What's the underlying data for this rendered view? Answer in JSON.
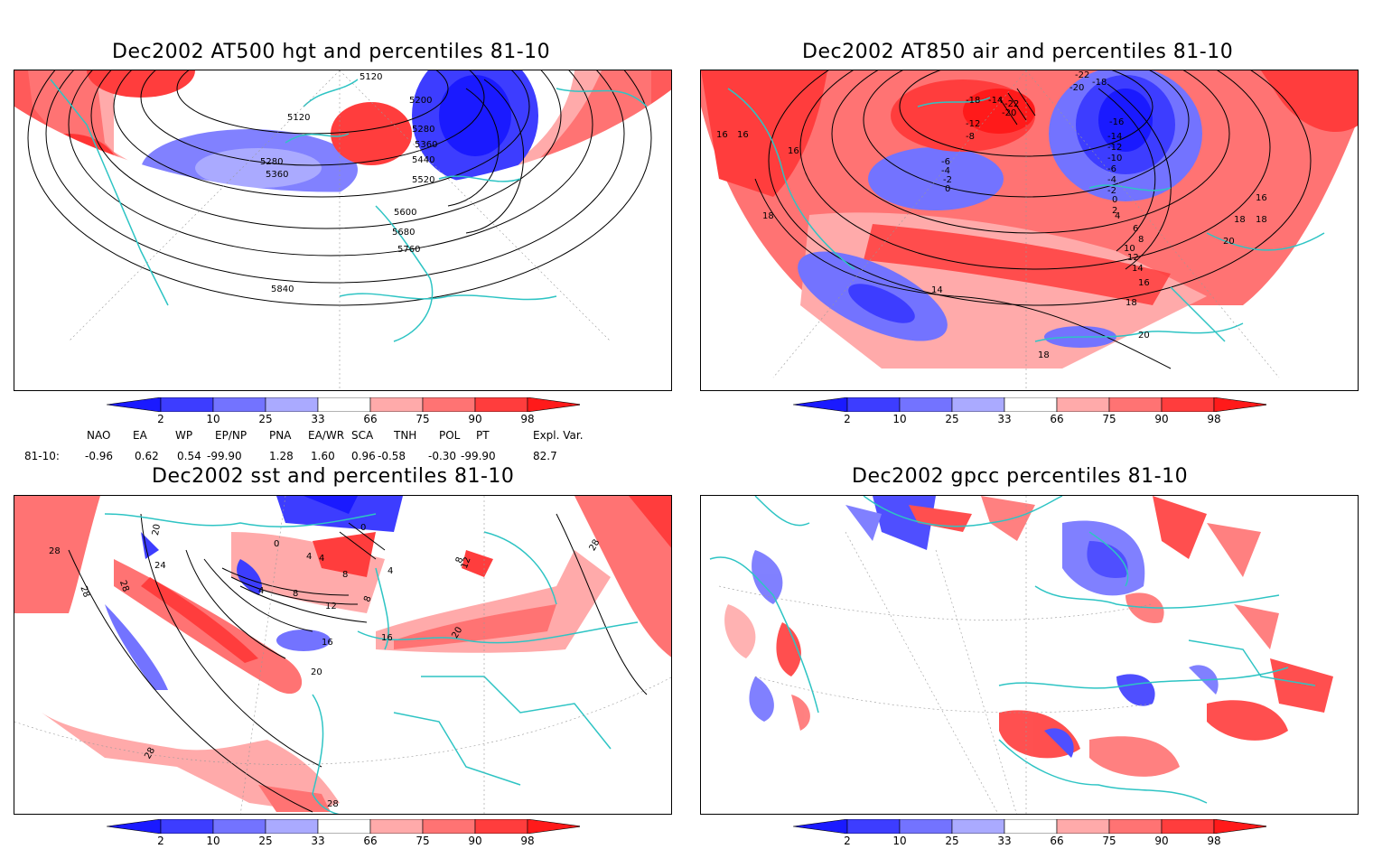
{
  "panels": [
    {
      "title": "Dec2002 AT500 hgt and percentiles 81-10",
      "contour_labels": [
        "5120",
        "5120",
        "5200",
        "5280",
        "5360",
        "5440",
        "5520",
        "5280",
        "5360",
        "5600",
        "5680",
        "5760",
        "5840"
      ]
    },
    {
      "title": "Dec2002 AT850 air and percentiles 81-10",
      "contour_labels": [
        "16",
        "16",
        "18",
        "-18",
        "-14",
        "-20",
        "-22",
        "-12",
        "-8",
        "-20",
        "-22",
        "-18",
        "-16",
        "-14",
        "-12",
        "-10",
        "-6",
        "-4",
        "-2",
        "0",
        "2",
        "-6",
        "-4",
        "-2",
        "0",
        "4",
        "6",
        "8",
        "10",
        "12",
        "14",
        "16",
        "18",
        "20",
        "14",
        "16",
        "18",
        "20",
        "18",
        "16",
        "18"
      ]
    },
    {
      "title": "Dec2002 sst and percentiles 81-10",
      "contour_labels": [
        "28",
        "20",
        "24",
        "28",
        "28",
        "0",
        "0",
        "4",
        "4",
        "8",
        "4",
        "8",
        "12",
        "16",
        "20",
        "16",
        "20",
        "28",
        "28",
        "8",
        "12",
        "4",
        "8",
        "28"
      ]
    },
    {
      "title": "Dec2002 gpcc percentiles 81-10",
      "contour_labels": []
    }
  ],
  "colorbar": {
    "ticks": [
      "2",
      "10",
      "25",
      "33",
      "66",
      "75",
      "90",
      "98"
    ],
    "colors": [
      "#1a1aff",
      "#3d3dff",
      "#7373ff",
      "#aaaaff",
      "#ffffff",
      "#ffaaaa",
      "#ff7373",
      "#ff3d3d",
      "#ff1a1a"
    ]
  },
  "index_table": {
    "headers": [
      "NAO",
      "EA",
      "WP",
      "EP/NP",
      "PNA",
      "EA/WR",
      "SCA",
      "TNH",
      "POL",
      "PT",
      "Expl. Var."
    ],
    "row_label": "81-10:",
    "values": [
      "-0.96",
      "0.62",
      "0.54",
      "-99.90",
      "1.28",
      "1.60",
      "0.96",
      "-0.58",
      "-0.30",
      "-99.90",
      "82.7"
    ]
  },
  "colors": {
    "coast": "#2ec4c4",
    "contour": "#000000",
    "positive": "#ff3d3d",
    "negative": "#3d3dff",
    "grid": "#999999"
  }
}
